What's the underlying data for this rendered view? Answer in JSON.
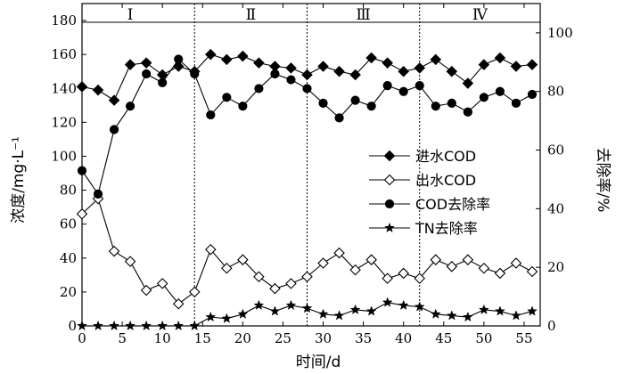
{
  "chart_data": {
    "type": "line",
    "xlabel": "时间/d",
    "ylabel_left": "浓度/mg·L⁻¹",
    "ylabel_right": "去除率/%",
    "xlim": [
      0,
      57
    ],
    "ylim_left": [
      0,
      190
    ],
    "ylim_right": [
      0,
      110
    ],
    "x_ticks": [
      0,
      5,
      10,
      15,
      20,
      25,
      30,
      35,
      40,
      45,
      50,
      55
    ],
    "y_left_ticks": [
      0,
      20,
      40,
      60,
      80,
      100,
      120,
      140,
      160,
      180
    ],
    "y_right_ticks": [
      0,
      20,
      40,
      60,
      80,
      100
    ],
    "reference_line_left_y": 179,
    "phase_boundaries": [
      14,
      28,
      42
    ],
    "phases": [
      {
        "label": "Ⅰ",
        "x": 6
      },
      {
        "label": "Ⅱ",
        "x": 21
      },
      {
        "label": "Ⅲ",
        "x": 35
      },
      {
        "label": "Ⅳ",
        "x": 49.5
      }
    ],
    "legend_position": "center-right",
    "series": [
      {
        "name": "进水COD",
        "axis": "left",
        "marker": "diamond-filled",
        "x": [
          0,
          2,
          4,
          6,
          8,
          10,
          12,
          14,
          16,
          18,
          20,
          22,
          24,
          26,
          28,
          30,
          32,
          34,
          36,
          38,
          40,
          42,
          44,
          46,
          48,
          50,
          52,
          54,
          56
        ],
        "y": [
          141,
          139,
          133,
          154,
          155,
          148,
          153,
          150,
          160,
          157,
          159,
          155,
          153,
          152,
          148,
          153,
          150,
          148,
          158,
          155,
          150,
          152,
          157,
          150,
          143,
          154,
          158,
          153,
          154
        ]
      },
      {
        "name": "出水COD",
        "axis": "left",
        "marker": "diamond-open",
        "x": [
          0,
          2,
          4,
          6,
          8,
          10,
          12,
          14,
          16,
          18,
          20,
          22,
          24,
          26,
          28,
          30,
          32,
          34,
          36,
          38,
          40,
          42,
          44,
          46,
          48,
          50,
          52,
          54,
          56
        ],
        "y": [
          66,
          75,
          44,
          38,
          21,
          25,
          13,
          20,
          45,
          34,
          39,
          29,
          22,
          25,
          29,
          37,
          43,
          33,
          39,
          28,
          31,
          28,
          39,
          35,
          39,
          34,
          31,
          37,
          32
        ]
      },
      {
        "name": "COD去除率",
        "axis": "right",
        "marker": "circle-filled",
        "x": [
          0,
          2,
          4,
          6,
          8,
          10,
          12,
          14,
          16,
          18,
          20,
          22,
          24,
          26,
          28,
          30,
          32,
          34,
          36,
          38,
          40,
          42,
          44,
          46,
          48,
          50,
          52,
          54,
          56
        ],
        "y": [
          53,
          45,
          67,
          75,
          86,
          83,
          91,
          86,
          72,
          78,
          75,
          81,
          86,
          84,
          81,
          76,
          71,
          77,
          75,
          82,
          80,
          82,
          75,
          76,
          73,
          78,
          80,
          76,
          79
        ]
      },
      {
        "name": "TN去除率",
        "axis": "right",
        "marker": "star",
        "x": [
          0,
          2,
          4,
          6,
          8,
          10,
          12,
          14,
          16,
          18,
          20,
          22,
          24,
          26,
          28,
          30,
          32,
          34,
          36,
          38,
          40,
          42,
          44,
          46,
          48,
          50,
          52,
          54,
          56
        ],
        "y": [
          0,
          0,
          0,
          0,
          0,
          0,
          0,
          0,
          3,
          2.5,
          4,
          7,
          5,
          7,
          6,
          4,
          3.5,
          5.5,
          5,
          8,
          7,
          6.5,
          4,
          3.5,
          3,
          5.5,
          5,
          3.5,
          5
        ]
      }
    ]
  }
}
